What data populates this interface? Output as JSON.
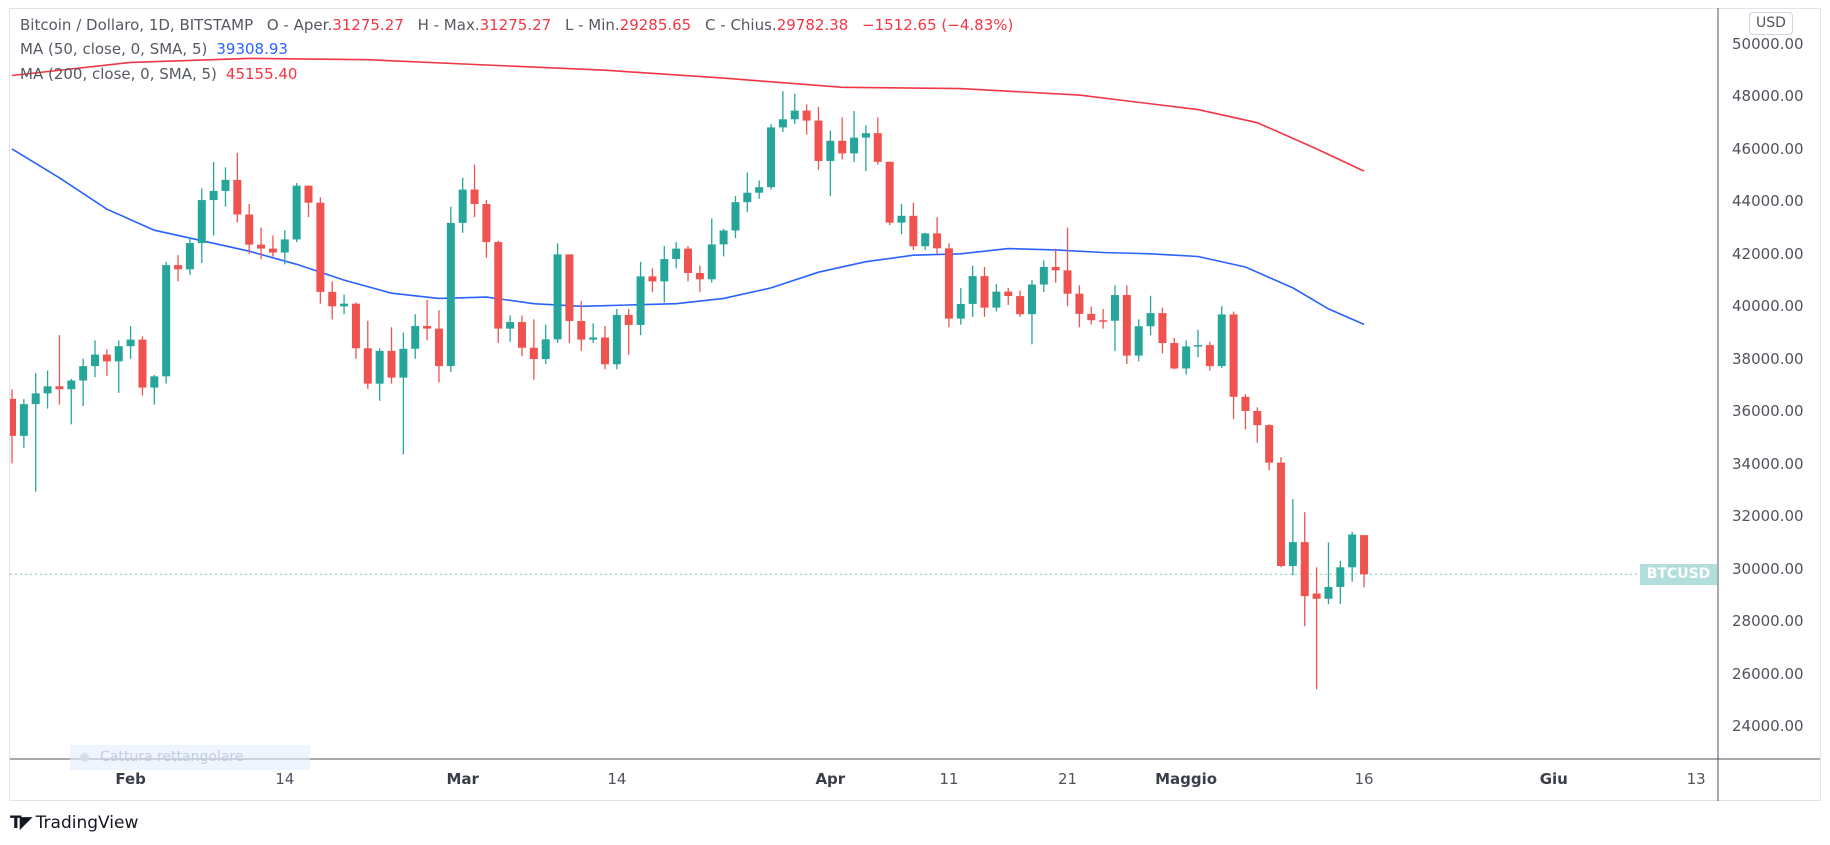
{
  "header": {
    "symbol": "Bitcoin / Dollaro, 1D, BITSTAMP",
    "open_label": "O - Aper.",
    "open": "31275.27",
    "high_label": "H - Max.",
    "high": "31275.27",
    "low_label": "L - Min.",
    "low": "29285.65",
    "close_label": "C - Chius.",
    "close": "29782.38",
    "change": "−1512.65 (−4.83%)"
  },
  "indicators": {
    "ma50": {
      "label": "MA (50, close, 0, SMA, 5)",
      "value": "39308.93",
      "color": "#2962ff"
    },
    "ma200": {
      "label": "MA (200, close, 0, SMA, 5)",
      "value": "45155.40",
      "color": "#f23645"
    }
  },
  "price_axis": {
    "currency_button": "USD",
    "last_label": "BTCUSD"
  },
  "overlay_hint": "Cattura rettangolare",
  "brand": {
    "logo": "TV",
    "name": "TradingView"
  },
  "colors": {
    "up": "#26a69a",
    "down": "#ef5350",
    "last_price": "#80cbc4"
  },
  "chart_data": {
    "type": "candlestick",
    "title": "Bitcoin / Dollaro, 1D, BITSTAMP",
    "first_date": "2022-01-22",
    "ylim": [
      23000,
      50300
    ],
    "yticks": [
      50000,
      48000,
      46000,
      44000,
      42000,
      40000,
      38000,
      36000,
      34000,
      32000,
      30000,
      28000,
      26000,
      24000
    ],
    "ytick_labels": [
      "50000.00",
      "48000.00",
      "46000.00",
      "44000.00",
      "42000.00",
      "40000.00",
      "38000.00",
      "36000.00",
      "34000.00",
      "32000.00",
      "30000.00",
      "28000.00",
      "26000.00",
      "24000.00"
    ],
    "xticks": [
      {
        "day": 10,
        "label": "Feb",
        "month": true
      },
      {
        "day": 23,
        "label": "14",
        "month": false
      },
      {
        "day": 38,
        "label": "Mar",
        "month": true
      },
      {
        "day": 51,
        "label": "14",
        "month": false
      },
      {
        "day": 69,
        "label": "Apr",
        "month": true
      },
      {
        "day": 79,
        "label": "11",
        "month": false
      },
      {
        "day": 89,
        "label": "21",
        "month": false
      },
      {
        "day": 99,
        "label": "Maggio",
        "month": true
      },
      {
        "day": 114,
        "label": "16",
        "month": false
      },
      {
        "day": 130,
        "label": "Giu",
        "month": true
      },
      {
        "day": 142,
        "label": "13",
        "month": false
      }
    ],
    "last_price": 29782.38,
    "ohlc": [
      [
        36470,
        36830,
        34010,
        35060
      ],
      [
        35060,
        36460,
        34600,
        36270
      ],
      [
        36270,
        37450,
        32930,
        36680
      ],
      [
        36680,
        37550,
        36100,
        36950
      ],
      [
        36950,
        38900,
        36250,
        36840
      ],
      [
        36840,
        37230,
        35500,
        37170
      ],
      [
        37170,
        38000,
        36200,
        37720
      ],
      [
        37720,
        38700,
        37300,
        38160
      ],
      [
        38160,
        38360,
        37350,
        37900
      ],
      [
        37900,
        38700,
        36700,
        38480
      ],
      [
        38480,
        39250,
        38000,
        38730
      ],
      [
        38730,
        38850,
        36600,
        36900
      ],
      [
        36900,
        37380,
        36250,
        37330
      ],
      [
        37330,
        41700,
        37050,
        41570
      ],
      [
        41570,
        41950,
        40950,
        41410
      ],
      [
        41410,
        42650,
        41200,
        42410
      ],
      [
        42410,
        44500,
        41650,
        44050
      ],
      [
        44050,
        45500,
        42700,
        44400
      ],
      [
        44400,
        45300,
        43800,
        44820
      ],
      [
        44820,
        45850,
        43200,
        43500
      ],
      [
        43500,
        43900,
        42000,
        42350
      ],
      [
        42350,
        43000,
        41800,
        42200
      ],
      [
        42200,
        42700,
        41900,
        42050
      ],
      [
        42050,
        42900,
        41600,
        42550
      ],
      [
        42550,
        44700,
        42450,
        44600
      ],
      [
        44600,
        44600,
        43400,
        43950
      ],
      [
        43950,
        44150,
        40100,
        40550
      ],
      [
        40550,
        40950,
        39500,
        40000
      ],
      [
        40000,
        40450,
        39700,
        40100
      ],
      [
        40100,
        40150,
        38000,
        38400
      ],
      [
        38400,
        39450,
        36850,
        37050
      ],
      [
        37050,
        38400,
        36400,
        38300
      ],
      [
        38300,
        39200,
        37050,
        37280
      ],
      [
        37280,
        39000,
        34350,
        38380
      ],
      [
        38380,
        39700,
        38000,
        39250
      ],
      [
        39250,
        40250,
        38700,
        39150
      ],
      [
        39150,
        39850,
        37100,
        37720
      ],
      [
        37720,
        43800,
        37500,
        43180
      ],
      [
        43180,
        44900,
        42800,
        44450
      ],
      [
        44450,
        45400,
        43400,
        43900
      ],
      [
        43900,
        44050,
        41850,
        42450
      ],
      [
        42450,
        42500,
        38600,
        39150
      ],
      [
        39150,
        39650,
        38650,
        39400
      ],
      [
        39400,
        39650,
        38100,
        38420
      ],
      [
        38420,
        39500,
        37200,
        37990
      ],
      [
        37990,
        39300,
        37800,
        38740
      ],
      [
        38740,
        42400,
        38600,
        41980
      ],
      [
        41980,
        41980,
        38600,
        39440
      ],
      [
        39440,
        40200,
        38300,
        38730
      ],
      [
        38730,
        39350,
        38600,
        38810
      ],
      [
        38810,
        39250,
        37600,
        37790
      ],
      [
        37790,
        39900,
        37600,
        39670
      ],
      [
        39670,
        39900,
        38150,
        39290
      ],
      [
        39290,
        41700,
        38900,
        41140
      ],
      [
        41140,
        41450,
        40550,
        40950
      ],
      [
        40950,
        42300,
        40150,
        41800
      ],
      [
        41800,
        42450,
        41450,
        42200
      ],
      [
        42200,
        42300,
        40950,
        41270
      ],
      [
        41270,
        41550,
        40550,
        41030
      ],
      [
        41030,
        43350,
        40900,
        42360
      ],
      [
        42360,
        42950,
        41900,
        42890
      ],
      [
        42890,
        44200,
        42600,
        43970
      ],
      [
        43970,
        45100,
        43600,
        44330
      ],
      [
        44330,
        44800,
        44100,
        44540
      ],
      [
        44540,
        46950,
        44450,
        46820
      ],
      [
        46820,
        48200,
        46650,
        47130
      ],
      [
        47130,
        48100,
        46950,
        47460
      ],
      [
        47460,
        47700,
        46550,
        47080
      ],
      [
        47080,
        47600,
        45200,
        45540
      ],
      [
        45540,
        46700,
        44200,
        46310
      ],
      [
        46310,
        47200,
        45600,
        45830
      ],
      [
        45830,
        47450,
        45500,
        46430
      ],
      [
        46430,
        46900,
        45150,
        46600
      ],
      [
        46600,
        47200,
        45400,
        45510
      ],
      [
        45510,
        45510,
        43100,
        43190
      ],
      [
        43190,
        43900,
        42750,
        43450
      ],
      [
        43450,
        43950,
        42150,
        42290
      ],
      [
        42290,
        42800,
        42150,
        42780
      ],
      [
        42780,
        43400,
        42000,
        42210
      ],
      [
        42210,
        42400,
        39200,
        39530
      ],
      [
        39530,
        40700,
        39300,
        40090
      ],
      [
        40090,
        41550,
        39600,
        41150
      ],
      [
        41150,
        41500,
        39600,
        39950
      ],
      [
        39950,
        40850,
        39800,
        40560
      ],
      [
        40560,
        40700,
        40050,
        40390
      ],
      [
        40390,
        40600,
        39600,
        39700
      ],
      [
        39700,
        41000,
        38550,
        40830
      ],
      [
        40830,
        41750,
        40550,
        41500
      ],
      [
        41500,
        42200,
        40900,
        41370
      ],
      [
        41370,
        43000,
        40000,
        40480
      ],
      [
        40480,
        40800,
        39200,
        39710
      ],
      [
        39710,
        39990,
        39300,
        39470
      ],
      [
        39470,
        39900,
        39150,
        39450
      ],
      [
        39450,
        40800,
        38300,
        40430
      ],
      [
        40430,
        40800,
        37800,
        38120
      ],
      [
        38120,
        39500,
        37900,
        39240
      ],
      [
        39240,
        40400,
        38900,
        39740
      ],
      [
        39740,
        39950,
        38200,
        38600
      ],
      [
        38600,
        38800,
        37600,
        37630
      ],
      [
        37630,
        38700,
        37400,
        38470
      ],
      [
        38470,
        39100,
        38050,
        38520
      ],
      [
        38520,
        38650,
        37550,
        37720
      ],
      [
        37720,
        40000,
        37650,
        39690
      ],
      [
        39690,
        39800,
        35700,
        36550
      ],
      [
        36550,
        36650,
        35300,
        36010
      ],
      [
        36010,
        36150,
        34800,
        35470
      ],
      [
        35470,
        35500,
        33750,
        34040
      ],
      [
        34040,
        34250,
        30050,
        30100
      ],
      [
        30100,
        32650,
        29750,
        31010
      ],
      [
        31010,
        32150,
        27800,
        28950
      ],
      [
        29050,
        30050,
        25400,
        28850
      ],
      [
        28850,
        31000,
        28650,
        29300
      ],
      [
        29300,
        30300,
        28650,
        30050
      ],
      [
        30050,
        31400,
        29500,
        31300
      ],
      [
        31275.27,
        31275.27,
        29285.65,
        29782.38
      ]
    ],
    "series": [
      {
        "name": "MA (50, close, 0, SMA, 5)",
        "color": "#2962ff",
        "points": [
          [
            0,
            46000
          ],
          [
            4,
            44900
          ],
          [
            8,
            43700
          ],
          [
            12,
            42900
          ],
          [
            16,
            42500
          ],
          [
            20,
            42100
          ],
          [
            24,
            41600
          ],
          [
            28,
            41000
          ],
          [
            32,
            40500
          ],
          [
            36,
            40300
          ],
          [
            40,
            40350
          ],
          [
            44,
            40100
          ],
          [
            48,
            40000
          ],
          [
            52,
            40050
          ],
          [
            56,
            40100
          ],
          [
            60,
            40300
          ],
          [
            64,
            40700
          ],
          [
            68,
            41300
          ],
          [
            72,
            41700
          ],
          [
            76,
            41950
          ],
          [
            80,
            42000
          ],
          [
            84,
            42200
          ],
          [
            88,
            42150
          ],
          [
            92,
            42050
          ],
          [
            96,
            42000
          ],
          [
            100,
            41900
          ],
          [
            104,
            41500
          ],
          [
            108,
            40700
          ],
          [
            111,
            39900
          ],
          [
            114,
            39308.93
          ]
        ]
      },
      {
        "name": "MA (200, close, 0, SMA, 5)",
        "color": "#f23645",
        "points": [
          [
            0,
            48800
          ],
          [
            10,
            49300
          ],
          [
            20,
            49450
          ],
          [
            30,
            49400
          ],
          [
            40,
            49200
          ],
          [
            50,
            49000
          ],
          [
            60,
            48700
          ],
          [
            70,
            48350
          ],
          [
            80,
            48300
          ],
          [
            90,
            48050
          ],
          [
            100,
            47500
          ],
          [
            105,
            47000
          ],
          [
            110,
            46000
          ],
          [
            114,
            45155.4
          ]
        ]
      }
    ]
  }
}
